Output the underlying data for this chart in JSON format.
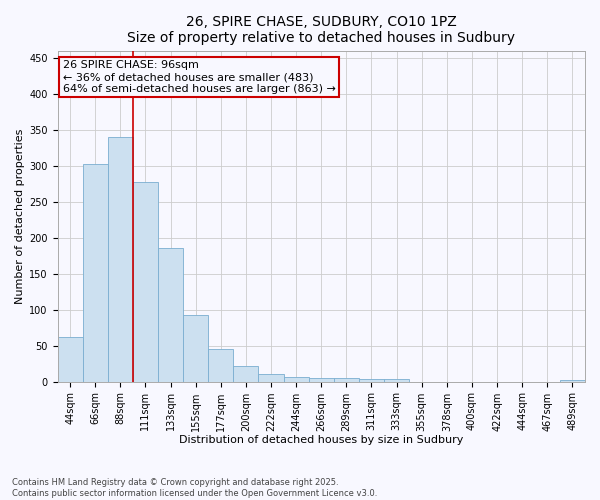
{
  "title": "26, SPIRE CHASE, SUDBURY, CO10 1PZ",
  "subtitle": "Size of property relative to detached houses in Sudbury",
  "xlabel": "Distribution of detached houses by size in Sudbury",
  "ylabel": "Number of detached properties",
  "categories": [
    "44sqm",
    "66sqm",
    "88sqm",
    "111sqm",
    "133sqm",
    "155sqm",
    "177sqm",
    "200sqm",
    "222sqm",
    "244sqm",
    "266sqm",
    "289sqm",
    "311sqm",
    "333sqm",
    "355sqm",
    "378sqm",
    "400sqm",
    "422sqm",
    "444sqm",
    "467sqm",
    "489sqm"
  ],
  "values": [
    62,
    302,
    340,
    278,
    185,
    93,
    46,
    22,
    11,
    6,
    5,
    5,
    4,
    4,
    0,
    0,
    0,
    0,
    0,
    0,
    2
  ],
  "bar_color": "#cce0f0",
  "bar_edge_color": "#7aaed0",
  "property_line_x": 2.5,
  "annotation_text_line1": "26 SPIRE CHASE: 96sqm",
  "annotation_text_line2": "← 36% of detached houses are smaller (483)",
  "annotation_text_line3": "64% of semi-detached houses are larger (863) →",
  "annotation_box_color": "#cc0000",
  "ylim": [
    0,
    460
  ],
  "yticks": [
    0,
    50,
    100,
    150,
    200,
    250,
    300,
    350,
    400,
    450
  ],
  "grid_color": "#cccccc",
  "background_color": "#f8f8ff",
  "footer_line1": "Contains HM Land Registry data © Crown copyright and database right 2025.",
  "footer_line2": "Contains public sector information licensed under the Open Government Licence v3.0.",
  "title_fontsize": 10,
  "subtitle_fontsize": 9,
  "tick_fontsize": 7,
  "axis_label_fontsize": 8,
  "footer_fontsize": 6,
  "annotation_fontsize": 8
}
